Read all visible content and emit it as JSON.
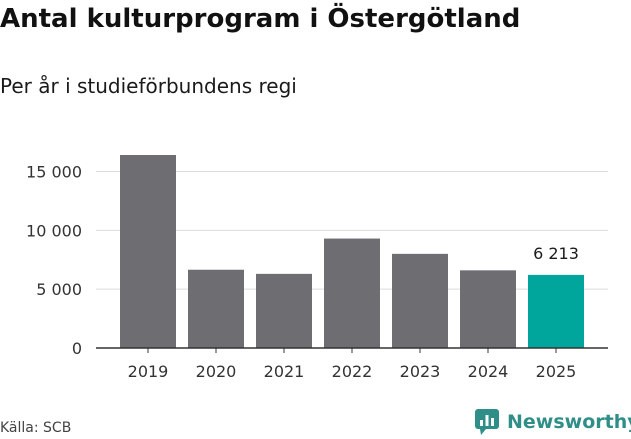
{
  "header": {
    "title": "Antal kulturprogram i Östergötland",
    "subtitle": "Per år i studieförbundens regi"
  },
  "footer": {
    "source": "Källa: SCB",
    "brand": "Newsworthy"
  },
  "chart_data": {
    "type": "bar",
    "categories": [
      "2019",
      "2020",
      "2021",
      "2022",
      "2023",
      "2024",
      "2025"
    ],
    "values": [
      16400,
      6650,
      6300,
      9300,
      8000,
      6600,
      6213
    ],
    "highlight_index": 6,
    "data_labels": [
      {
        "index": 6,
        "text": "6 213"
      }
    ],
    "y_ticks": [
      {
        "value": 0,
        "label": "0"
      },
      {
        "value": 5000,
        "label": "5 000"
      },
      {
        "value": 10000,
        "label": "10 000"
      },
      {
        "value": 15000,
        "label": "15 000"
      }
    ],
    "ylim": [
      0,
      16400
    ],
    "grid": true,
    "colors": {
      "bar": "#6e6d72",
      "highlight": "#00a69c",
      "grid": "#dcdcdc",
      "axis": "#333333"
    }
  }
}
